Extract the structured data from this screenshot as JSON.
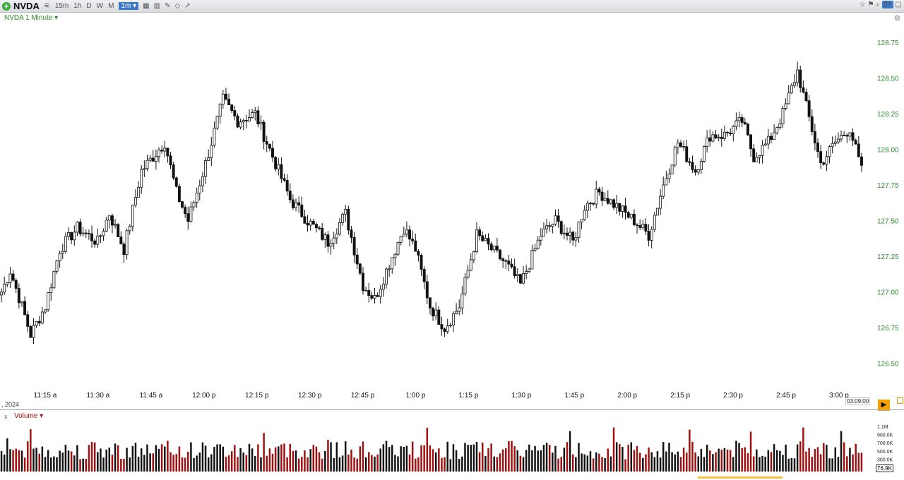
{
  "toolbar": {
    "symbol": "NVDA",
    "intervals": [
      "15m",
      "1h",
      "D",
      "W",
      "M"
    ],
    "selected_interval": "1m ▾",
    "right_badge": "5+"
  },
  "chart_title": "NVDA 1 Minute ▾",
  "last_time": "03:09:00",
  "date_label": ", 2024",
  "volume_title": "Volume ▾",
  "volume_close": "x",
  "volume_last": "76.9K",
  "volume_axis_labels": [
    "1.1M",
    "900.0K",
    "700.0K",
    "500.0K",
    "300.0K"
  ],
  "colors": {
    "up": "#111111",
    "down": "#a01010",
    "axis": "#2e8b2e",
    "accent": "#f5a200"
  },
  "chart_data": {
    "type": "candlestick",
    "ylim": [
      126.35,
      128.85
    ],
    "y_ticks": [
      126.5,
      126.75,
      127.0,
      127.25,
      127.5,
      127.75,
      128.0,
      128.25,
      128.5,
      128.75
    ],
    "y_tick_labels": [
      "126.50",
      "126.75",
      "127.00",
      "127.25",
      "127.50",
      "127.75",
      "128.00",
      "128.25",
      "128.50",
      "128.75"
    ],
    "x_ticks": [
      "11:15 a",
      "11:30 a",
      "11:45 a",
      "12:00 p",
      "12:15 p",
      "12:30 p",
      "12:45 p",
      "1:00 p",
      "1:15 p",
      "1:30 p",
      "1:45 p",
      "2:00 p",
      "2:15 p",
      "2:30 p",
      "2:45 p",
      "3:00 p"
    ],
    "close_anchors": [
      [
        0,
        127.0
      ],
      [
        3,
        127.15
      ],
      [
        7,
        126.9
      ],
      [
        10,
        126.7
      ],
      [
        15,
        126.9
      ],
      [
        20,
        127.3
      ],
      [
        26,
        127.45
      ],
      [
        33,
        127.35
      ],
      [
        37,
        127.55
      ],
      [
        42,
        127.3
      ],
      [
        48,
        127.85
      ],
      [
        56,
        128.05
      ],
      [
        60,
        127.7
      ],
      [
        64,
        127.5
      ],
      [
        70,
        127.9
      ],
      [
        76,
        128.35
      ],
      [
        81,
        128.2
      ],
      [
        87,
        128.25
      ],
      [
        93,
        127.95
      ],
      [
        99,
        127.65
      ],
      [
        105,
        127.5
      ],
      [
        112,
        127.35
      ],
      [
        118,
        127.55
      ],
      [
        124,
        127.05
      ],
      [
        128,
        126.95
      ],
      [
        133,
        127.2
      ],
      [
        138,
        127.45
      ],
      [
        142,
        127.3
      ],
      [
        147,
        126.9
      ],
      [
        152,
        126.75
      ],
      [
        157,
        126.9
      ],
      [
        163,
        127.4
      ],
      [
        168,
        127.3
      ],
      [
        173,
        127.2
      ],
      [
        178,
        127.05
      ],
      [
        185,
        127.4
      ],
      [
        190,
        127.5
      ],
      [
        196,
        127.35
      ],
      [
        200,
        127.6
      ],
      [
        205,
        127.7
      ],
      [
        211,
        127.6
      ],
      [
        217,
        127.5
      ],
      [
        222,
        127.4
      ],
      [
        227,
        127.75
      ],
      [
        232,
        128.05
      ],
      [
        238,
        127.85
      ],
      [
        243,
        128.1
      ],
      [
        248,
        128.1
      ],
      [
        254,
        128.2
      ],
      [
        258,
        127.95
      ],
      [
        263,
        128.05
      ],
      [
        268,
        128.25
      ],
      [
        273,
        128.55
      ],
      [
        276,
        128.3
      ],
      [
        281,
        127.9
      ],
      [
        286,
        128.05
      ],
      [
        291,
        128.15
      ],
      [
        295,
        127.85
      ]
    ],
    "n_bars": 296,
    "volume_max": 1200000
  }
}
